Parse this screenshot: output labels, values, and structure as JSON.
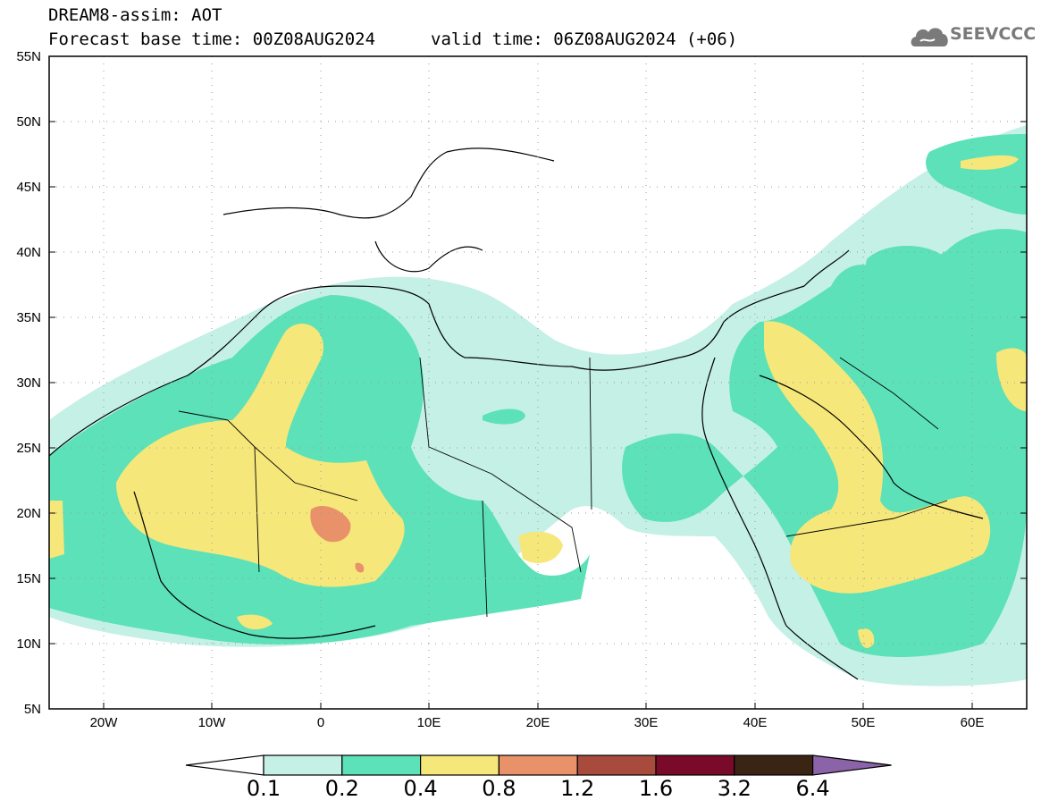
{
  "header": {
    "title": "DREAM8-assim: AOT",
    "base_time": "Forecast base time: 00Z08AUG2024",
    "valid_time": "valid time: 06Z08AUG2024 (+06)"
  },
  "logo": {
    "text": "SEEVCCC",
    "icon": "cloud-icon",
    "color": "#7a7a7a"
  },
  "map": {
    "projection": "lat-lon",
    "lon_range": [
      -25,
      65
    ],
    "lat_range": [
      5,
      55
    ],
    "lat_ticks": [
      "55N",
      "50N",
      "45N",
      "40N",
      "35N",
      "30N",
      "25N",
      "20N",
      "15N",
      "10N",
      "5N"
    ],
    "lon_ticks": [
      "20W",
      "10W",
      "0",
      "10E",
      "20E",
      "30E",
      "40E",
      "50E",
      "60E"
    ],
    "grid": "dotted"
  },
  "colorbar": {
    "labels": [
      "0.1",
      "0.2",
      "0.4",
      "0.8",
      "1.2",
      "1.6",
      "3.2",
      "6.4"
    ],
    "colors": [
      "#ffffff",
      "#c4f0e6",
      "#5ce1b8",
      "#f6e77a",
      "#e9926a",
      "#a84a3c",
      "#7a0a2a",
      "#3a2414",
      "#8a63a8"
    ]
  }
}
